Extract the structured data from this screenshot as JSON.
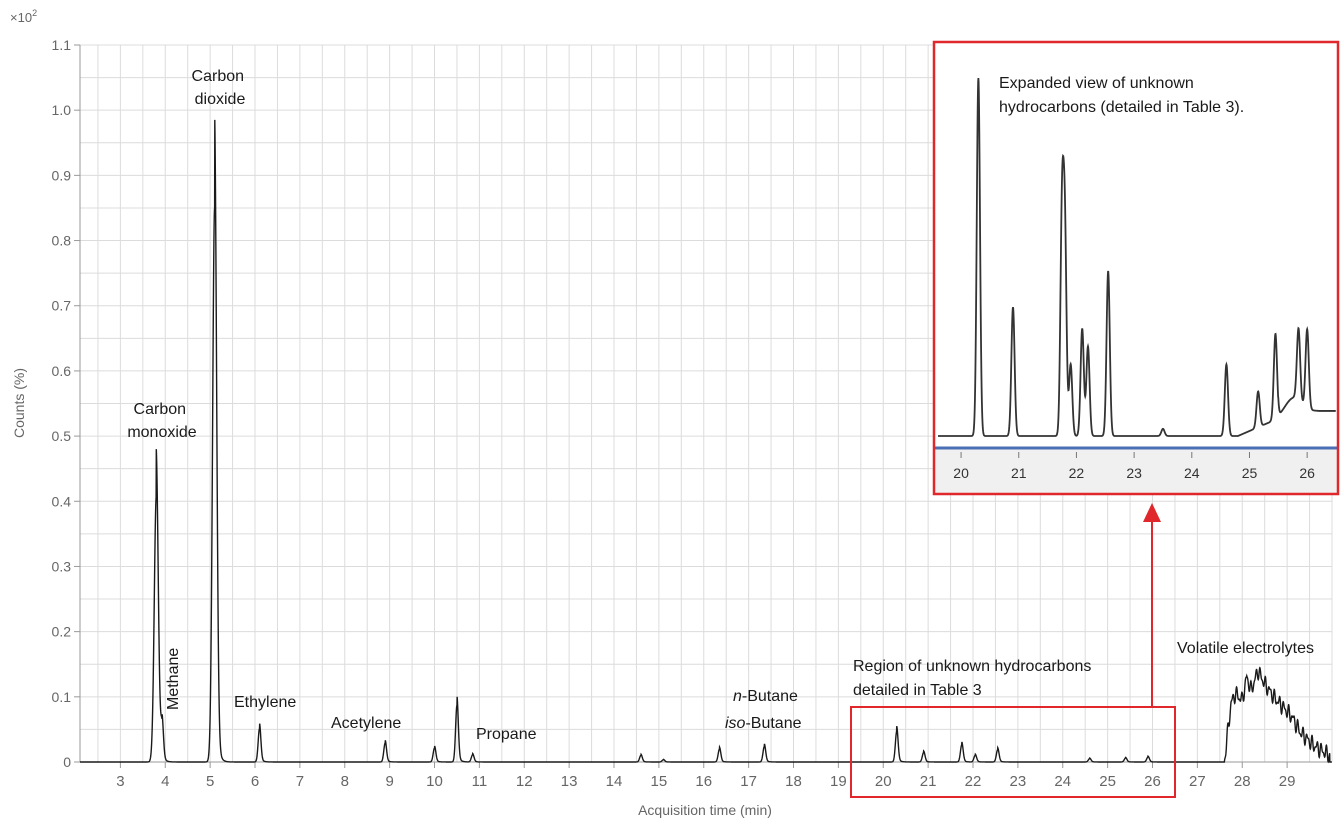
{
  "chart_data": {
    "type": "line",
    "xlabel": "Acquisition time (min)",
    "ylabel": "Counts (%)",
    "y_multiplier_label": "×10",
    "y_multiplier_exp": "2",
    "xlim": [
      2.1,
      30.0
    ],
    "ylim": [
      0,
      1.1
    ],
    "x_ticks": [
      "3",
      "4",
      "5",
      "6",
      "7",
      "8",
      "9",
      "10",
      "11",
      "12",
      "13",
      "14",
      "15",
      "16",
      "17",
      "18",
      "19",
      "20",
      "21",
      "22",
      "23",
      "24",
      "25",
      "26",
      "27",
      "28",
      "29"
    ],
    "y_ticks": [
      "0",
      "0.1",
      "0.2",
      "0.3",
      "0.4",
      "0.5",
      "0.6",
      "0.7",
      "0.8",
      "0.9",
      "1.0",
      "1.1"
    ],
    "grid": true,
    "series": [
      {
        "baseline": 0.0,
        "peaks": [
          {
            "x": 3.8,
            "y": 0.48
          },
          {
            "x": 3.93,
            "y": 0.063
          },
          {
            "x": 5.1,
            "y": 1.0
          },
          {
            "x": 6.1,
            "y": 0.06
          },
          {
            "x": 8.9,
            "y": 0.034
          },
          {
            "x": 10.0,
            "y": 0.025
          },
          {
            "x": 10.5,
            "y": 0.102
          },
          {
            "x": 10.85,
            "y": 0.013
          },
          {
            "x": 14.6,
            "y": 0.012
          },
          {
            "x": 15.1,
            "y": 0.004
          },
          {
            "x": 16.35,
            "y": 0.023
          },
          {
            "x": 17.35,
            "y": 0.028
          },
          {
            "x": 20.3,
            "y": 0.055
          },
          {
            "x": 20.9,
            "y": 0.017
          },
          {
            "x": 21.75,
            "y": 0.031
          },
          {
            "x": 22.05,
            "y": 0.012
          },
          {
            "x": 22.55,
            "y": 0.022
          },
          {
            "x": 24.6,
            "y": 0.006
          },
          {
            "x": 25.4,
            "y": 0.007
          },
          {
            "x": 25.9,
            "y": 0.009
          }
        ],
        "electrolyte_hump": [
          [
            27.6,
            0.0
          ],
          [
            27.75,
            0.09
          ],
          [
            27.85,
            0.105
          ],
          [
            28.0,
            0.095
          ],
          [
            28.1,
            0.13
          ],
          [
            28.2,
            0.11
          ],
          [
            28.35,
            0.14
          ],
          [
            28.5,
            0.12
          ],
          [
            28.7,
            0.1
          ],
          [
            28.9,
            0.085
          ],
          [
            29.1,
            0.07
          ],
          [
            29.3,
            0.045
          ],
          [
            29.6,
            0.025
          ],
          [
            29.95,
            0.01
          ]
        ]
      }
    ],
    "annotations": [
      {
        "id": "co",
        "lines": [
          "Carbon",
          "monoxide"
        ]
      },
      {
        "id": "co2",
        "lines": [
          "Carbon",
          "dioxide"
        ]
      },
      {
        "id": "methane",
        "lines": [
          "Methane"
        ]
      },
      {
        "id": "ethylene",
        "lines": [
          "Ethylene"
        ]
      },
      {
        "id": "acetylene",
        "lines": [
          "Acetylene"
        ]
      },
      {
        "id": "propane",
        "lines": [
          "Propane"
        ]
      },
      {
        "id": "nbutane",
        "prefix": "n",
        "rest": "-Butane"
      },
      {
        "id": "isobutane",
        "prefix": "iso",
        "rest": "-Butane"
      },
      {
        "id": "region",
        "lines": [
          "Region of unknown hydrocarbons",
          "detailed in Table 3"
        ]
      },
      {
        "id": "volatile",
        "lines": [
          "Volatile electrolytes"
        ]
      }
    ],
    "inset": {
      "title_lines": [
        "Expanded view of unknown",
        "hydrocarbons (detailed in Table 3)."
      ],
      "x_ticks": [
        "20",
        "21",
        "22",
        "23",
        "24",
        "25",
        "26"
      ],
      "xlim": [
        19.6,
        26.5
      ],
      "peaks": [
        {
          "x": 20.3,
          "y": 1.0
        },
        {
          "x": 20.9,
          "y": 0.36
        },
        {
          "x": 21.75,
          "y": 0.61
        },
        {
          "x": 21.8,
          "y": 0.55
        },
        {
          "x": 21.9,
          "y": 0.2
        },
        {
          "x": 22.1,
          "y": 0.3
        },
        {
          "x": 22.2,
          "y": 0.25
        },
        {
          "x": 22.55,
          "y": 0.46
        },
        {
          "x": 23.5,
          "y": 0.02
        },
        {
          "x": 24.6,
          "y": 0.2
        },
        {
          "x": 25.15,
          "y": 0.1
        },
        {
          "x": 25.45,
          "y": 0.24
        },
        {
          "x": 25.85,
          "y": 0.2
        },
        {
          "x": 26.0,
          "y": 0.22
        }
      ]
    },
    "colors": {
      "trace": "#1a1a1a",
      "grid": "#dcdcdc",
      "highlight": "#e0272b",
      "axis_text": "#666666",
      "inset_baseline": "#4a6fb5"
    }
  }
}
